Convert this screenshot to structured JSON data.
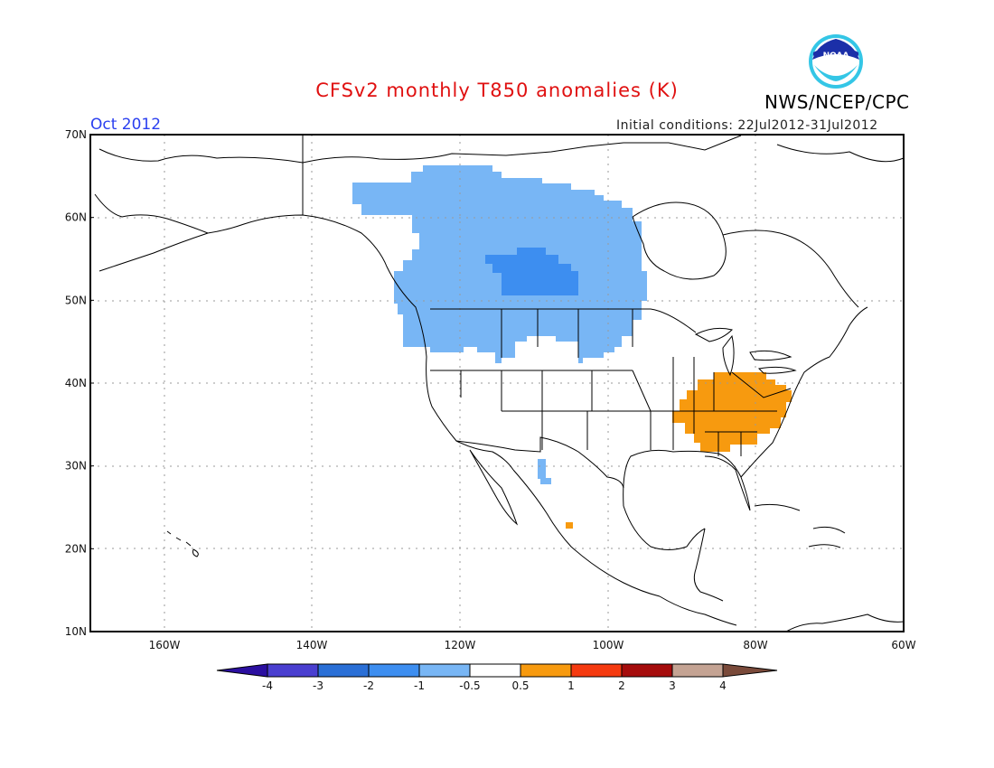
{
  "header": {
    "title": "CFSv2 monthly T850 anomalies (K)",
    "agency": "NWS/NCEP/CPC",
    "period": "Oct 2012",
    "initial_conditions": "Initial conditions: 22Jul2012-31Jul2012",
    "logo_text": "NOAA"
  },
  "map": {
    "lat_labels": [
      "70N",
      "60N",
      "50N",
      "40N",
      "30N",
      "20N",
      "10N"
    ],
    "lon_labels": [
      "160W",
      "140W",
      "120W",
      "100W",
      "80W",
      "60W"
    ]
  },
  "colorbar": {
    "labels": [
      "-4",
      "-3",
      "-2",
      "-1",
      "-0.5",
      "0.5",
      "1",
      "2",
      "3",
      "4"
    ],
    "colors": [
      "#2b0fa0",
      "#4a3fd0",
      "#2a6fd6",
      "#3d8ef0",
      "#78b6f5",
      "#ffffff",
      "#f79a0f",
      "#f53a10",
      "#a50c0c",
      "#c4a393",
      "#7a4a3a"
    ]
  },
  "colors": {
    "anomaly_neg_half": "#78b6f5",
    "anomaly_neg_one": "#3d8ef0",
    "anomaly_pos_half": "#f79a0f"
  }
}
